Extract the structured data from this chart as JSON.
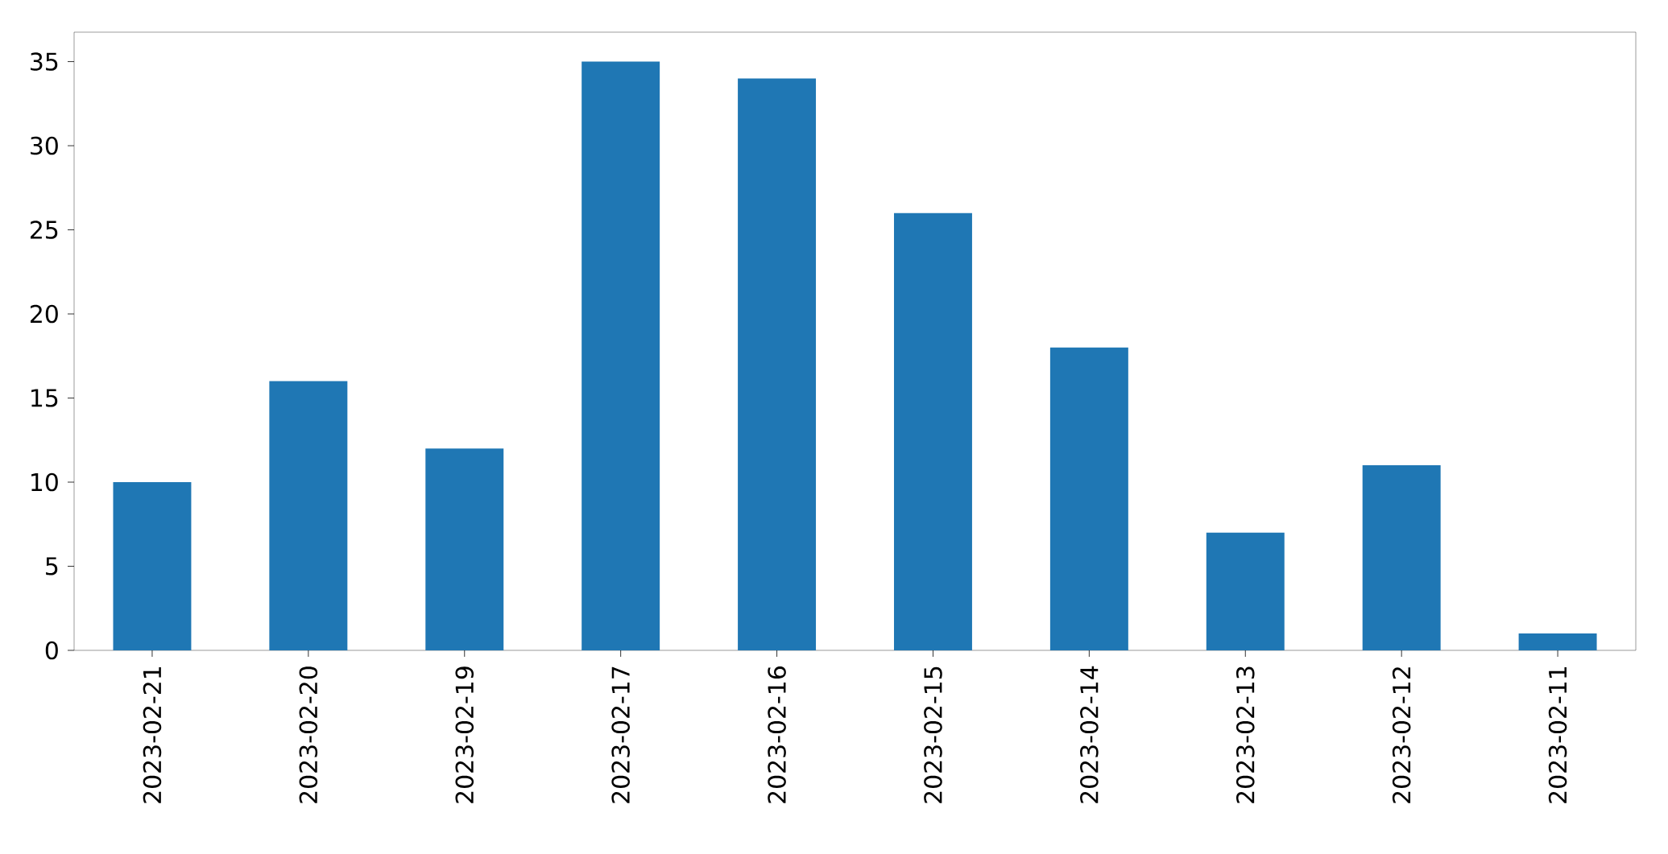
{
  "chart_data": {
    "type": "bar",
    "categories": [
      "2023-02-21",
      "2023-02-20",
      "2023-02-19",
      "2023-02-17",
      "2023-02-16",
      "2023-02-15",
      "2023-02-14",
      "2023-02-13",
      "2023-02-12",
      "2023-02-11"
    ],
    "values": [
      10,
      16,
      12,
      35,
      34,
      26,
      18,
      7,
      11,
      1
    ],
    "color": "#1f77b4",
    "ylim": [
      0,
      36.75
    ],
    "yticks": [
      0,
      5,
      10,
      15,
      20,
      25,
      30,
      35
    ]
  }
}
